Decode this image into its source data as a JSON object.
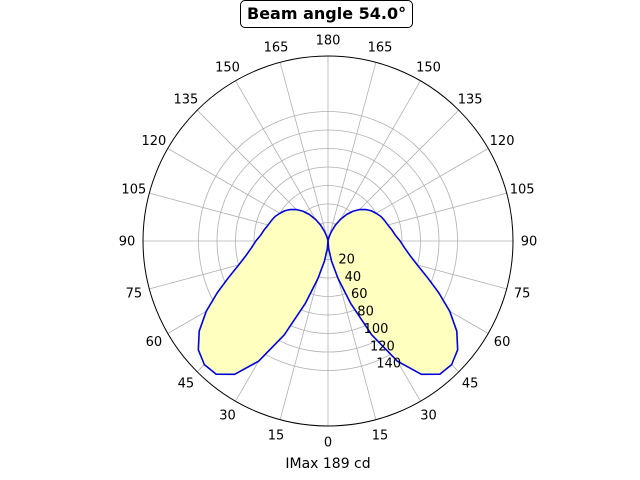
{
  "chart_data": {
    "type": "polar-line",
    "title": "Beam angle 54.0°",
    "xlabel": "IMax 189 cd",
    "angle_tick_labels": [
      "0",
      "15",
      "30",
      "45",
      "60",
      "75",
      "90",
      "105",
      "120",
      "135",
      "150",
      "165",
      "180",
      "165",
      "150",
      "135",
      "120",
      "105",
      "90",
      "75",
      "60",
      "45",
      "30",
      "15"
    ],
    "radial_ticks": [
      20,
      40,
      60,
      80,
      100,
      120,
      140
    ],
    "rlim": [
      0,
      200
    ],
    "grid": true,
    "angle_units": "degrees",
    "series": [
      {
        "color": "#0000dd",
        "fill": "#ffffc0",
        "angles": [
          0,
          5,
          10,
          15,
          20,
          25,
          30,
          35,
          40,
          45,
          50,
          55,
          60,
          65,
          70,
          75,
          80,
          85,
          90,
          95,
          100,
          105,
          110,
          115,
          120,
          125,
          130,
          135,
          140,
          145,
          150,
          155,
          160,
          165,
          170,
          175,
          180
        ],
        "values": [
          0,
          8,
          22,
          42,
          72,
          112,
          150,
          176,
          188,
          189,
          183,
          170,
          152,
          132,
          114,
          100,
          90,
          83,
          78,
          73,
          70,
          67,
          65,
          63,
          60,
          57,
          53,
          48,
          42,
          35,
          27,
          19,
          11,
          5,
          1,
          0,
          0
        ]
      }
    ]
  }
}
